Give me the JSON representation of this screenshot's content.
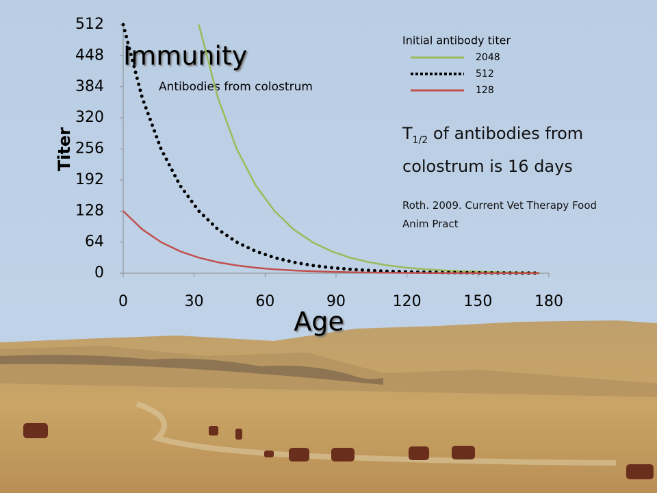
{
  "chart_data": {
    "type": "line",
    "title": "Immunity",
    "subtitle": "Antibodies from colostrum",
    "x_label": "Age",
    "y_label": "Titer",
    "legend_title": "Initial antibody titer",
    "legend": "upper right",
    "note": {
      "main": "T",
      "subscript": "1/2",
      "rest": "of antibodies from colostrum is 16 days"
    },
    "reference": "Roth. 2009. Current Vet Therapy Food Anim Pract",
    "x": [
      0,
      8,
      16,
      24,
      32,
      40,
      48,
      56,
      64,
      72,
      80,
      88,
      96,
      104,
      112,
      120,
      128,
      136,
      144,
      152,
      160,
      168,
      176
    ],
    "series": [
      {
        "name": "2048",
        "color": "#9bbb59",
        "style": "solid",
        "values": [
          null,
          null,
          null,
          null,
          512,
          362.04,
          256,
          181.02,
          128,
          90.51,
          64,
          45.25,
          32,
          22.63,
          16,
          11.31,
          8,
          5.66,
          4,
          2.83,
          2,
          1.41,
          1
        ]
      },
      {
        "name": "512",
        "color": "#000000",
        "style": "dotted",
        "values": [
          512,
          362.04,
          256,
          181.02,
          128,
          90.51,
          64,
          45.25,
          32,
          22.63,
          16,
          11.31,
          8,
          5.66,
          4,
          2.83,
          2,
          1.41,
          1,
          0.71,
          0.5,
          0.35,
          0.25
        ]
      },
      {
        "name": "128",
        "color": "#c0504d",
        "style": "solid",
        "values": [
          128,
          90.51,
          64,
          45.25,
          32,
          22.63,
          16,
          11.31,
          8,
          5.66,
          4,
          2.83,
          2,
          1.41,
          1,
          0.71,
          0.5,
          0.35,
          0.25,
          0.18,
          0.13,
          0.09,
          0.06
        ]
      }
    ],
    "xlim": [
      0,
      180
    ],
    "xticks": [
      0,
      30,
      60,
      90,
      120,
      150,
      180
    ],
    "ylim": [
      0,
      512
    ],
    "yticks": [
      0,
      64,
      128,
      192,
      256,
      320,
      384,
      448,
      512
    ],
    "grid": false
  }
}
